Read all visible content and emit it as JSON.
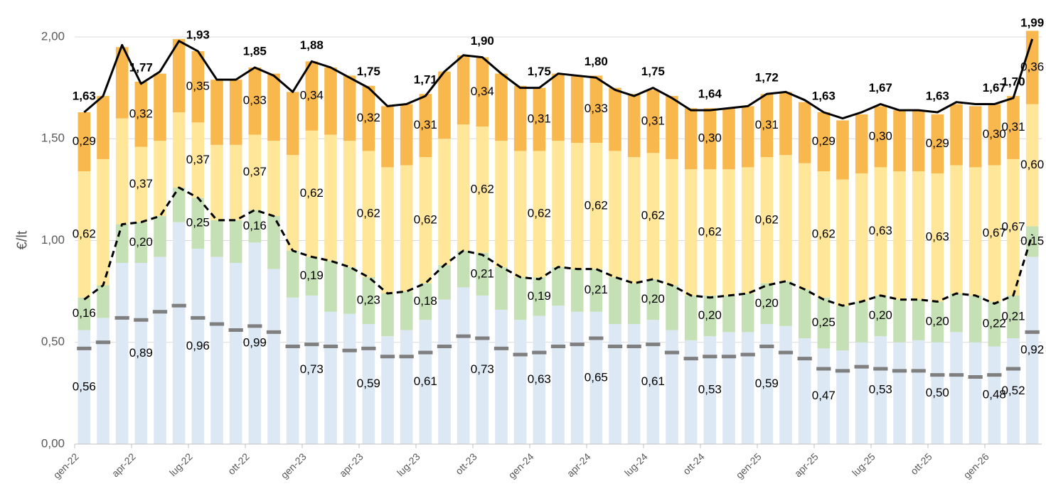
{
  "chart_data": {
    "type": "bar",
    "y_label": "€/lt",
    "ylim": [
      0,
      2
    ],
    "yticks": [
      {
        "value": 0,
        "label": "0,00"
      },
      {
        "value": 0.5,
        "label": "0,50"
      },
      {
        "value": 1,
        "label": "1,00"
      },
      {
        "value": 1.5,
        "label": "1,50"
      },
      {
        "value": 2,
        "label": "2,00"
      }
    ],
    "grid": true,
    "categories": [
      "gen-22",
      null,
      null,
      "apr-22",
      null,
      null,
      "lug-22",
      null,
      null,
      "ott-22",
      null,
      null,
      "gen-23",
      null,
      null,
      "apr-23",
      null,
      null,
      "lug-23",
      null,
      null,
      "ott-23",
      null,
      null,
      "gen-24",
      null,
      null,
      "apr-24",
      null,
      null,
      "lug-24",
      null,
      null,
      "ott-24",
      null,
      null,
      "gen-25",
      null,
      null,
      "apr-25",
      null,
      null,
      "lug-25",
      null,
      null,
      "ott-25",
      null,
      null,
      "gen-26",
      null,
      null
    ],
    "series": [
      {
        "type": "bar",
        "color": "#dde8f5",
        "values": [
          0.56,
          0.62,
          0.89,
          0.89,
          0.92,
          1.09,
          0.96,
          0.92,
          0.89,
          0.99,
          0.86,
          0.72,
          0.73,
          0.65,
          0.64,
          0.59,
          0.53,
          0.56,
          0.61,
          0.71,
          0.77,
          0.73,
          0.66,
          0.61,
          0.63,
          0.68,
          0.65,
          0.65,
          0.59,
          0.59,
          0.61,
          0.56,
          0.51,
          0.53,
          0.55,
          0.55,
          0.59,
          0.58,
          0.52,
          0.47,
          0.46,
          0.5,
          0.53,
          0.5,
          0.51,
          0.5,
          0.55,
          0.5,
          0.48,
          0.52,
          0.92
        ],
        "value_labels": [
          "0,56",
          null,
          null,
          "0,89",
          null,
          null,
          "0,96",
          null,
          null,
          "0,99",
          null,
          null,
          "0,73",
          null,
          null,
          "0,59",
          null,
          null,
          "0,61",
          null,
          null,
          "0,73",
          null,
          null,
          "0,63",
          null,
          null,
          "0,65",
          null,
          null,
          "0,61",
          null,
          null,
          "0,53",
          null,
          null,
          "0,59",
          null,
          null,
          "0,47",
          null,
          null,
          "0,53",
          null,
          null,
          "0,50",
          null,
          null,
          "0,48",
          "0,52",
          "0,92"
        ]
      },
      {
        "type": "bar",
        "color": "#c5e0b4",
        "values": [
          0.16,
          0.16,
          0.19,
          0.2,
          0.2,
          0.17,
          0.25,
          0.18,
          0.21,
          0.16,
          0.26,
          0.23,
          0.19,
          0.25,
          0.23,
          0.23,
          0.21,
          0.19,
          0.18,
          0.17,
          0.18,
          0.21,
          0.21,
          0.21,
          0.19,
          0.19,
          0.21,
          0.21,
          0.23,
          0.2,
          0.2,
          0.22,
          0.22,
          0.2,
          0.18,
          0.19,
          0.2,
          0.22,
          0.24,
          0.25,
          0.22,
          0.2,
          0.2,
          0.21,
          0.2,
          0.2,
          0.19,
          0.23,
          0.22,
          0.21,
          0.15
        ],
        "value_labels": [
          "0,16",
          null,
          null,
          "0,20",
          null,
          null,
          "0,25",
          null,
          null,
          "0,16",
          null,
          null,
          "0,19",
          null,
          null,
          "0,23",
          null,
          null,
          "0,18",
          null,
          null,
          "0,21",
          null,
          null,
          "0,19",
          null,
          null,
          "0,21",
          null,
          null,
          "0,20",
          null,
          null,
          "0,20",
          null,
          null,
          "0,20",
          null,
          null,
          "0,25",
          null,
          null,
          "0,20",
          null,
          null,
          "0,20",
          null,
          null,
          "0,22",
          "0,21",
          "0,15"
        ]
      },
      {
        "type": "bar",
        "color": "#ffe699",
        "values": [
          0.62,
          0.62,
          0.52,
          0.37,
          0.37,
          0.37,
          0.37,
          0.37,
          0.37,
          0.37,
          0.37,
          0.47,
          0.62,
          0.62,
          0.62,
          0.62,
          0.62,
          0.62,
          0.62,
          0.62,
          0.62,
          0.62,
          0.62,
          0.62,
          0.62,
          0.62,
          0.62,
          0.62,
          0.62,
          0.62,
          0.62,
          0.62,
          0.62,
          0.62,
          0.62,
          0.62,
          0.62,
          0.62,
          0.62,
          0.62,
          0.62,
          0.63,
          0.63,
          0.63,
          0.63,
          0.63,
          0.63,
          0.63,
          0.67,
          0.67,
          0.6
        ],
        "value_labels": [
          "0,62",
          null,
          null,
          "0,37",
          null,
          null,
          "0,37",
          null,
          null,
          "0,37",
          null,
          null,
          "0,62",
          null,
          null,
          "0,62",
          null,
          null,
          "0,62",
          null,
          null,
          "0,62",
          null,
          null,
          "0,62",
          null,
          null,
          "0,62",
          null,
          null,
          "0,62",
          null,
          null,
          "0,62",
          null,
          null,
          "0,62",
          null,
          null,
          "0,62",
          null,
          null,
          "0,63",
          null,
          null,
          "0,63",
          null,
          null,
          "0,67",
          "0,67",
          "0,60"
        ]
      },
      {
        "type": "bar",
        "color": "#f8b84e",
        "values": [
          0.29,
          0.31,
          0.35,
          0.32,
          0.33,
          0.36,
          0.35,
          0.32,
          0.32,
          0.33,
          0.33,
          0.31,
          0.34,
          0.33,
          0.32,
          0.32,
          0.3,
          0.3,
          0.31,
          0.33,
          0.34,
          0.34,
          0.33,
          0.32,
          0.31,
          0.33,
          0.33,
          0.33,
          0.31,
          0.31,
          0.31,
          0.31,
          0.3,
          0.3,
          0.3,
          0.3,
          0.31,
          0.31,
          0.3,
          0.29,
          0.29,
          0.29,
          0.3,
          0.3,
          0.3,
          0.29,
          0.3,
          0.3,
          0.3,
          0.31,
          0.36
        ],
        "value_labels": [
          "0,29",
          null,
          null,
          "0,32",
          null,
          null,
          "0,35",
          null,
          null,
          "0,33",
          null,
          null,
          "0,34",
          null,
          null,
          "0,32",
          null,
          null,
          "0,31",
          null,
          null,
          "0,34",
          null,
          null,
          "0,31",
          null,
          null,
          "0,33",
          null,
          null,
          "0,31",
          null,
          null,
          "0,30",
          null,
          null,
          "0,31",
          null,
          null,
          "0,29",
          null,
          null,
          "0,30",
          null,
          null,
          "0,29",
          null,
          null,
          "0,30",
          "0,31",
          "0,36"
        ]
      },
      {
        "type": "dash",
        "color": "#7f7f7f",
        "values": [
          0.47,
          0.5,
          0.62,
          0.61,
          0.65,
          0.68,
          0.62,
          0.59,
          0.56,
          0.58,
          0.55,
          0.48,
          0.49,
          0.48,
          0.46,
          0.47,
          0.43,
          0.43,
          0.45,
          0.48,
          0.53,
          0.52,
          0.47,
          0.44,
          0.45,
          0.48,
          0.49,
          0.52,
          0.48,
          0.48,
          0.49,
          0.45,
          0.42,
          0.43,
          0.43,
          0.44,
          0.48,
          0.45,
          0.42,
          0.37,
          0.36,
          0.38,
          0.37,
          0.36,
          0.36,
          0.34,
          0.34,
          0.33,
          0.34,
          0.37,
          0.55
        ]
      },
      {
        "type": "line",
        "style": "dashed",
        "color": "#000000",
        "values": [
          0.71,
          0.78,
          1.08,
          1.09,
          1.12,
          1.26,
          1.21,
          1.1,
          1.1,
          1.15,
          1.12,
          0.95,
          0.92,
          0.9,
          0.87,
          0.82,
          0.74,
          0.75,
          0.79,
          0.88,
          0.95,
          0.93,
          0.87,
          0.82,
          0.81,
          0.87,
          0.86,
          0.86,
          0.82,
          0.79,
          0.81,
          0.78,
          0.73,
          0.72,
          0.73,
          0.74,
          0.78,
          0.8,
          0.76,
          0.71,
          0.68,
          0.7,
          0.73,
          0.71,
          0.71,
          0.7,
          0.74,
          0.73,
          0.69,
          0.73,
          1.03
        ]
      },
      {
        "type": "line",
        "style": "solid",
        "color": "#000000",
        "values": [
          1.63,
          1.71,
          1.96,
          1.77,
          1.83,
          1.98,
          1.93,
          1.79,
          1.79,
          1.85,
          1.81,
          1.73,
          1.88,
          1.85,
          1.8,
          1.75,
          1.66,
          1.67,
          1.71,
          1.83,
          1.91,
          1.9,
          1.82,
          1.75,
          1.75,
          1.82,
          1.81,
          1.8,
          1.74,
          1.71,
          1.75,
          1.7,
          1.64,
          1.64,
          1.65,
          1.66,
          1.72,
          1.73,
          1.69,
          1.63,
          1.6,
          1.63,
          1.67,
          1.64,
          1.64,
          1.63,
          1.68,
          1.67,
          1.67,
          1.7,
          1.99
        ],
        "value_labels": [
          "1,63",
          null,
          null,
          "1,77",
          null,
          null,
          "1,93",
          null,
          null,
          "1,85",
          null,
          null,
          "1,88",
          null,
          null,
          "1,75",
          null,
          null,
          "1,71",
          null,
          null,
          "1,90",
          null,
          null,
          "1,75",
          null,
          null,
          "1,80",
          null,
          null,
          "1,75",
          null,
          null,
          "1,64",
          null,
          null,
          "1,72",
          null,
          null,
          "1,63",
          null,
          null,
          "1,67",
          null,
          null,
          "1,63",
          null,
          null,
          "1,67",
          "1,70",
          "1,99"
        ]
      }
    ]
  }
}
